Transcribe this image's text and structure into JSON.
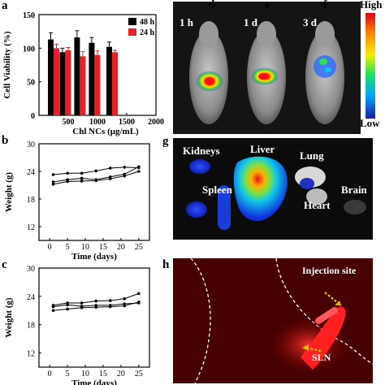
{
  "panels": {
    "a": "a",
    "b": "b",
    "c": "c",
    "d": "d",
    "e": "e",
    "f": "f",
    "g": "g",
    "h": "h"
  },
  "chart_data": [
    {
      "type": "bar",
      "panel": "a",
      "categories": [
        "200",
        "400",
        "600",
        "800",
        "1000",
        "1200",
        "1400"
      ],
      "series": [
        {
          "name": "48 h",
          "color": "#000000",
          "values": [
            113,
            94,
            116,
            108,
            102,
            null,
            null
          ]
        },
        {
          "name": "24 h",
          "color": "#e8202a",
          "values": [
            100,
            97,
            88,
            90,
            94,
            null,
            null
          ]
        }
      ],
      "bar_x": [
        250,
        450,
        700,
        950,
        1250
      ],
      "errors_48": [
        10,
        6,
        10,
        8,
        7
      ],
      "errors_24": [
        6,
        4,
        7,
        6,
        3
      ],
      "xlabel": "Chl NCs (μg/mL)",
      "ylabel": "Cell Viability (%)",
      "xlim": [
        0,
        2000
      ],
      "ylim": [
        0,
        150
      ],
      "xticks": [
        "0",
        "500",
        "1000",
        "1500",
        "2000"
      ],
      "yticks": [
        "0",
        "50",
        "100",
        "150"
      ],
      "legend_position": "top-right"
    },
    {
      "type": "line",
      "panel": "b",
      "xlabel": "Time (days)",
      "ylabel": "Weight (g)",
      "xlim": [
        -3,
        28
      ],
      "ylim": [
        9,
        30
      ],
      "xticks": [
        "0",
        "5",
        "10",
        "15",
        "20",
        "25"
      ],
      "yticks": [
        "12",
        "18",
        "24",
        "30"
      ],
      "x": [
        1,
        5,
        9,
        13,
        17,
        21,
        25
      ],
      "series": [
        {
          "values": [
            23.3,
            23.6,
            23.6,
            24.1,
            24.7,
            24.9,
            24.8
          ]
        },
        {
          "values": [
            21.7,
            22.2,
            22.5,
            22.2,
            22.8,
            23.4,
            25.0
          ]
        },
        {
          "values": [
            21.2,
            21.8,
            21.9,
            22.0,
            22.4,
            23.0,
            24.0
          ]
        }
      ]
    },
    {
      "type": "line",
      "panel": "c",
      "xlabel": "Time (days)",
      "ylabel": "Weight (g)",
      "xlim": [
        -3,
        28
      ],
      "ylim": [
        9,
        30
      ],
      "xticks": [
        "0",
        "5",
        "10",
        "15",
        "20",
        "25"
      ],
      "yticks": [
        "12",
        "18",
        "24",
        "30"
      ],
      "x": [
        1,
        5,
        9,
        13,
        17,
        21,
        25
      ],
      "series": [
        {
          "values": [
            22.1,
            22.6,
            22.6,
            23.0,
            23.1,
            23.5,
            24.6
          ]
        },
        {
          "values": [
            21.8,
            22.2,
            21.9,
            22.1,
            22.1,
            22.4,
            22.6
          ]
        },
        {
          "values": [
            21.0,
            21.3,
            21.6,
            21.7,
            21.8,
            22.0,
            22.8
          ]
        }
      ]
    }
  ],
  "images": {
    "d_time": "1 h",
    "e_time": "1 d",
    "f_time": "3 d",
    "scale_high": "High",
    "scale_low": "Low",
    "g_labels": {
      "kidneys": "Kidneys",
      "liver": "Liver",
      "lung": "Lung",
      "spleen": "Spleen",
      "heart": "Heart",
      "brain": "Brain"
    },
    "h_labels": {
      "injection": "Injection site",
      "sln": "SLN"
    }
  }
}
